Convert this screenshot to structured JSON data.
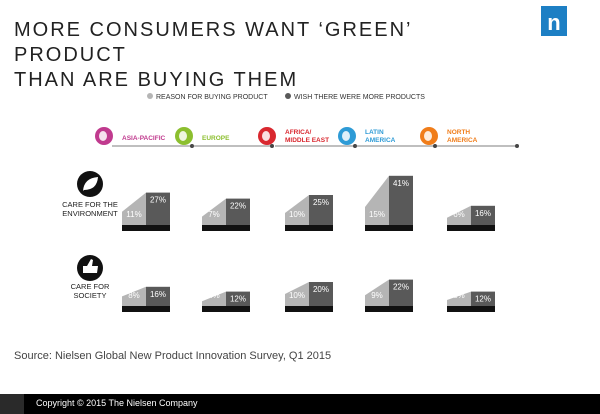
{
  "title_line1": "MORE CONSUMERS WANT ‘GREEN’ PRODUCT",
  "title_line2": "THAN ARE BUYING THEM",
  "brand": {
    "logo_letter": "n",
    "color": "#1d7fc4"
  },
  "legend": [
    {
      "label": "REASON FOR BUYING PRODUCT",
      "color": "#b5b5b5"
    },
    {
      "label": "WISH THERE WERE MORE PRODUCTS",
      "color": "#595959"
    }
  ],
  "chart_data": {
    "type": "bar",
    "title": "MORE CONSUMERS WANT ‘GREEN’ PRODUCT THAN ARE BUYING THEM",
    "categories": [
      "ASIA-PACIFIC",
      "EUROPE",
      "AFRICA/ MIDDLE EAST",
      "LATIN AMERICA",
      "NORTH AMERICA"
    ],
    "region_colors": [
      "#c03a8e",
      "#8cbf2f",
      "#d9282f",
      "#2e9bd6",
      "#f07d1a"
    ],
    "rows": [
      {
        "label_lines": [
          "CARE FOR THE",
          "ENVIRONMENT"
        ],
        "icon": "leaf-icon",
        "series": [
          {
            "name": "REASON FOR BUYING PRODUCT",
            "values": [
              11,
              7,
              10,
              15,
              6
            ]
          },
          {
            "name": "WISH THERE WERE MORE PRODUCTS",
            "values": [
              27,
              22,
              25,
              41,
              16
            ]
          }
        ]
      },
      {
        "label_lines": [
          "CARE FOR",
          "SOCIETY"
        ],
        "icon": "thumbs-up-icon",
        "series": [
          {
            "name": "REASON FOR BUYING PRODUCT",
            "values": [
              8,
              4,
              10,
              9,
              5
            ]
          },
          {
            "name": "WISH THERE WERE MORE PRODUCTS",
            "values": [
              16,
              12,
              20,
              22,
              12
            ]
          }
        ]
      }
    ],
    "colors": {
      "reason": "#b5b5b5",
      "wish": "#595959",
      "base": "#111111"
    },
    "value_suffix": "%",
    "xlabel": "",
    "ylabel": ""
  },
  "source": "Source: Nielsen Global New Product Innovation Survey, Q1 2015",
  "copyright": "Copyright © 2015 The Nielsen Company"
}
